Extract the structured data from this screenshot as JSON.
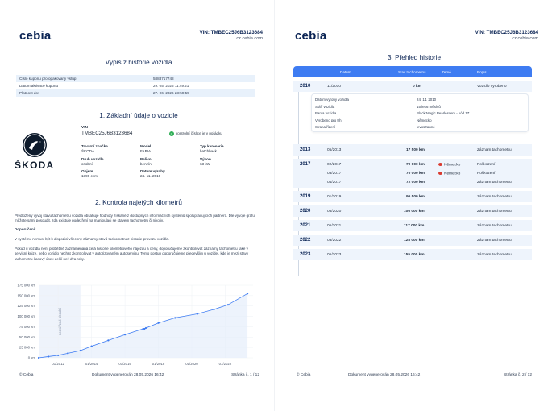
{
  "brand": "cebia",
  "header": {
    "vin": "VIN: TMBEC25J6B3123684",
    "url": "cz.cebia.com"
  },
  "page1": {
    "title": "Výpis z historie vozidla",
    "voucher": [
      {
        "label": "Číslo kuponu pro opakovaný vstup:",
        "value": "5883717748"
      },
      {
        "label": "Datum aktivace kuponu",
        "value": "29. 05. 2026 11:49:21"
      },
      {
        "label": "Platnost do:",
        "value": "27. 06. 2026 23:59:59"
      }
    ],
    "section1_title": "1. Základní údaje o vozidle",
    "brand_logo_text": "ŠKODA",
    "vin_label": "VIN",
    "vin_value": "TMBEC25J6B3123684",
    "vin_check": "kontrolní číslice je v pořádku",
    "fields": [
      {
        "label": "Tovární značka",
        "value": "ŠKODA"
      },
      {
        "label": "Model",
        "value": "FABIA"
      },
      {
        "label": "Typ karoserie",
        "value": "hatchback"
      },
      {
        "label": "Druh vozidla",
        "value": "osobní"
      },
      {
        "label": "Palivo",
        "value": "benzín"
      },
      {
        "label": "Výkon",
        "value": "63 kW"
      },
      {
        "label": "Objem",
        "value": "1390 ccm"
      },
      {
        "label": "Datum výroby",
        "value": "24. 11. 2010"
      }
    ],
    "section2_title": "2. Kontrola najetých kilometrů",
    "para1": "Předložený vývoj stavu tachometru vozidla obsahuje hodnoty získané z dostupných informačních systémů spolupracujících partnerů. Dle vývoje grafu můžete sami posoudit, zda existuje podezření na manipulaci se stavem tachometru či nikoliv.",
    "para2_label": "Doporučení:",
    "para3": "V systému nemusí být k dispozici všechny záznamy stavů tachometru z historie provozu vozidla.",
    "para4": "Pokud u vozidla není průběžně zaznamenaná celá historie kilometrového nájezdu a ceny, doporučujeme zkontrolovat záznamy tachometru také v servisní knize, nebo vozidlo nechat zkontrolovat v autorizovaném autoservisu. Tento postup doporučujeme především u vozidel, kde je mezi stavy tachometru časový úsek delší než dva roky.",
    "footer_left": "© Cebia",
    "footer_center": "Dokument vygenerován 28.05.2026 16:42",
    "footer_right": "Stránka č. 1 / 12"
  },
  "chart_data": {
    "type": "line",
    "title": "",
    "xlabel": "",
    "ylabel": "",
    "y_ticks": [
      "175 000 km",
      "150 000 km",
      "125 000 km",
      "100 000 km",
      "75 000 km",
      "50 000 km",
      "25 000 km",
      "0 km"
    ],
    "x_ticks": [
      "01/2012",
      "01/2014",
      "01/2016",
      "01/2018",
      "01/2020",
      "01/2022"
    ],
    "annotation": "neověřené období",
    "ylim": [
      0,
      175000
    ],
    "xlim": [
      "2010-11",
      "2023-09"
    ],
    "series": [
      {
        "x": [
          "2010-11",
          "2011-06",
          "2012-01",
          "2012-08",
          "2013-05",
          "2014-01",
          "2015-01",
          "2016-01",
          "2017-02",
          "2017-03",
          "2017-04",
          "2018-01",
          "2019-01",
          "2020-05",
          "2021-05",
          "2022-03",
          "2023-05"
        ],
        "values": [
          0,
          3000,
          6000,
          11000,
          17500,
          28000,
          42000,
          56000,
          70000,
          70000,
          72000,
          84000,
          96500,
          106000,
          117000,
          128000,
          155000
        ]
      }
    ],
    "grid": true,
    "legend": "none"
  },
  "page2": {
    "title": "3. Přehled historie",
    "columns": {
      "date": "Datum",
      "km": "Stav tachometru",
      "country": "Země",
      "desc": "Popis"
    },
    "detail": [
      {
        "label": "Datum výroby vozidla",
        "value": "24. 11. 2010"
      },
      {
        "label": "Stáří vozidla",
        "value": "15 let 6 měsíců"
      },
      {
        "label": "Barva vozidla",
        "value": "Black Magic Pearlescent - kód 1Z"
      },
      {
        "label": "Vyrobeno pro trh",
        "value": "Německo"
      },
      {
        "label": "Strana řízení",
        "value": "levostranné"
      }
    ],
    "years": [
      {
        "year": "2010",
        "rows": [
          {
            "date": "11/2010",
            "km": "0 km",
            "country": "",
            "desc": "Vozidlo vyrobeno"
          }
        ]
      },
      {
        "year": "2013",
        "rows": [
          {
            "date": "05/2013",
            "km": "17 500 km",
            "country": "",
            "desc": "Záznam tachometru"
          }
        ]
      },
      {
        "year": "2017",
        "rows": [
          {
            "date": "02/2017",
            "km": "70 000 km",
            "country": "Německo",
            "desc": "Poškození"
          },
          {
            "date": "03/2017",
            "km": "70 000 km",
            "country": "Německo",
            "desc": "Poškození"
          },
          {
            "date": "04/2017",
            "km": "72 000 km",
            "country": "",
            "desc": "Záznam tachometru"
          }
        ]
      },
      {
        "year": "2019",
        "rows": [
          {
            "date": "01/2019",
            "km": "96 500 km",
            "country": "",
            "desc": "Záznam tachometru"
          }
        ]
      },
      {
        "year": "2020",
        "rows": [
          {
            "date": "05/2020",
            "km": "106 000 km",
            "country": "",
            "desc": "Záznam tachometru"
          }
        ]
      },
      {
        "year": "2021",
        "rows": [
          {
            "date": "05/2021",
            "km": "117 000 km",
            "country": "",
            "desc": "Záznam tachometru"
          }
        ]
      },
      {
        "year": "2022",
        "rows": [
          {
            "date": "03/2022",
            "km": "128 000 km",
            "country": "",
            "desc": "Záznam tachometru"
          }
        ]
      },
      {
        "year": "2023",
        "rows": [
          {
            "date": "05/2023",
            "km": "155 000 km",
            "country": "",
            "desc": "Záznam tachometru"
          }
        ]
      }
    ],
    "footer_left": "© Cebia",
    "footer_center": "Dokument vygenerován 28.05.2026 16:42",
    "footer_right": "Stránka č. 2 / 12"
  },
  "colors": {
    "brand_navy": "#0b2454",
    "accent_blue": "#3e7cf2",
    "row_shade": "#e8f1fb",
    "check_green": "#2eae55",
    "flag_red": "#d93a2f"
  }
}
